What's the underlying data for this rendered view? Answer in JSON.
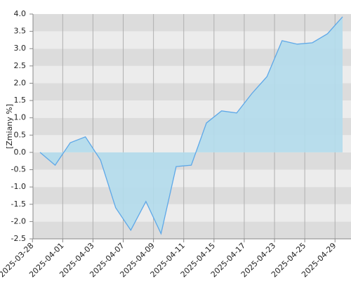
{
  "chart_data": {
    "type": "area",
    "y_label": "[Zmiany %]",
    "categories": [
      "2025-03-28",
      null,
      "2025-04-01",
      null,
      "2025-04-03",
      null,
      "2025-04-07",
      null,
      "2025-04-09",
      null,
      "2025-04-11",
      null,
      "2025-04-15",
      null,
      "2025-04-17",
      null,
      "2025-04-23",
      null,
      "2025-04-25",
      null,
      "2025-04-29"
    ],
    "values": [
      0.0,
      -0.37,
      0.28,
      0.45,
      -0.22,
      -1.6,
      -2.25,
      -1.42,
      -2.35,
      -0.41,
      -0.37,
      0.85,
      1.2,
      1.14,
      1.7,
      2.19,
      3.23,
      3.13,
      3.17,
      3.43,
      3.92
    ],
    "color": "#5ea8e8",
    "fill": "#b3dcec",
    "ylim": [
      -2.5,
      4.0
    ],
    "yticks": [
      {
        "value": -2.5,
        "label": "-2.5"
      },
      {
        "value": -2.0,
        "label": "-2.0"
      },
      {
        "value": -1.5,
        "label": "-1.5"
      },
      {
        "value": -1.0,
        "label": "-1.0"
      },
      {
        "value": -0.5,
        "label": "-0.5"
      },
      {
        "value": 0.0,
        "label": "0.0"
      },
      {
        "value": 0.5,
        "label": "0.5"
      },
      {
        "value": 1.0,
        "label": "1.0"
      },
      {
        "value": 1.5,
        "label": "1.5"
      },
      {
        "value": 2.0,
        "label": "2.0"
      },
      {
        "value": 2.5,
        "label": "2.5"
      },
      {
        "value": 3.0,
        "label": "3.0"
      },
      {
        "value": 3.5,
        "label": "3.5"
      },
      {
        "value": 4.0,
        "label": "4.0"
      }
    ],
    "grid": true
  }
}
